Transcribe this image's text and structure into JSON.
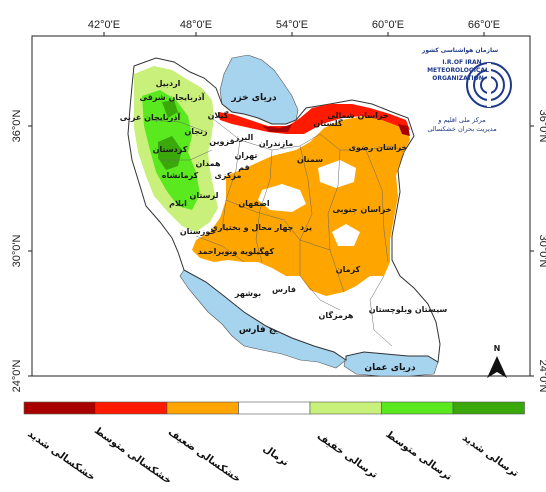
{
  "map": {
    "lon_ticks": [
      "42°0'E",
      "48°0'E",
      "54°0'E",
      "60°0'E",
      "66°0'E"
    ],
    "lat_ticks_left": [
      "36°0'N",
      "30°0'N",
      "24°0'N"
    ],
    "lat_ticks_right": [
      "36°0'N",
      "30°0'N",
      "24°0'N"
    ],
    "water_labels": {
      "caspian": "دریای خزر",
      "persian_gulf": "خلیج فارس",
      "oman_sea": "دریای عمان"
    },
    "north_label": "N",
    "provinces": [
      "اردبیل",
      "آذربایجان شرقی",
      "آذربایجان غربی",
      "زنجان",
      "گیلان",
      "مازندران",
      "گلستان",
      "خراسان شمالی",
      "قزوین",
      "البرز",
      "تهران",
      "سمنان",
      "خراسان رضوی",
      "کردستان",
      "همدان",
      "کرمانشاه",
      "مرکزی",
      "قم",
      "لرستان",
      "ایلام",
      "اصفهان",
      "خراسان جنوبی",
      "یزد",
      "چهار محال و بختیاری",
      "خوزستان",
      "کهگیلویه وبویراحمد",
      "کرمان",
      "فارس",
      "بوشهر",
      "هرمزگان",
      "سیستان وبلوچستان"
    ]
  },
  "organization": {
    "name_fa": "سازمان هواشناسی کشور",
    "name_en_1": "I.R.OF IRAN",
    "name_en_2": "METEOROLOGICAL",
    "name_en_3": "ORGANIZATION",
    "center_1": "مرکز ملی اقلیم و",
    "center_2": "مدیریت بحران خشکسالی",
    "brand_color": "#1f3a8a"
  },
  "legend": {
    "classes": [
      {
        "label": "خشکسالی شدید",
        "color": "#a80000"
      },
      {
        "label": "خشکسالی متوسط",
        "color": "#ff1a00"
      },
      {
        "label": "خشکسالی ضعیف",
        "color": "#ffa500"
      },
      {
        "label": "نرمال",
        "color": "#ffffff"
      },
      {
        "label": "ترسالی خفیف",
        "color": "#c8f07a"
      },
      {
        "label": "ترسالی متوسط",
        "color": "#5ae81e"
      },
      {
        "label": "ترسالی شدید",
        "color": "#3aa80a"
      }
    ]
  }
}
